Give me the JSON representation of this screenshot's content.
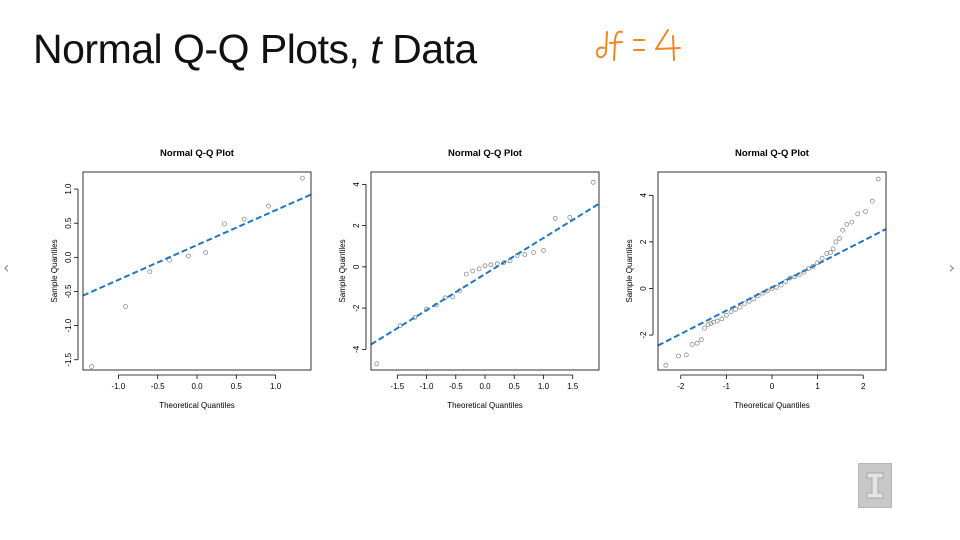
{
  "slide": {
    "title_main": "Normal Q-Q Plots, ",
    "title_italic": "t",
    "title_end": " Data",
    "annotation": "df = 4",
    "nav_prev_icon": "chevron-left-icon",
    "nav_next_icon": "chevron-right-icon",
    "logo_icon": "university-block-i-icon"
  },
  "chart_data": [
    {
      "type": "scatter",
      "title": "Normal Q-Q Plot",
      "xlabel": "Theoretical Quantiles",
      "ylabel": "Sample Quantiles",
      "xlim": [
        -1.45,
        1.45
      ],
      "ylim": [
        -1.65,
        1.25
      ],
      "xticks": [
        -1.0,
        -0.5,
        0.0,
        0.5,
        1.0
      ],
      "xtick_labels": [
        "-1.0",
        "-0.5",
        "0.0",
        "0.5",
        "1.0"
      ],
      "yticks": [
        -1.5,
        -1.0,
        -0.5,
        0.0,
        0.5,
        1.0
      ],
      "ytick_labels": [
        "-1.5",
        "-1.0",
        "-0.5",
        "0.0",
        "0.5",
        "1.0"
      ],
      "point_color": "#8c8c8c",
      "line_color": "#1f77c4",
      "points": [
        {
          "x": -1.34,
          "y": -1.6
        },
        {
          "x": -0.91,
          "y": -0.72
        },
        {
          "x": -0.6,
          "y": -0.21
        },
        {
          "x": -0.35,
          "y": -0.04
        },
        {
          "x": -0.11,
          "y": 0.02
        },
        {
          "x": 0.11,
          "y": 0.07
        },
        {
          "x": 0.35,
          "y": 0.49
        },
        {
          "x": 0.6,
          "y": 0.56
        },
        {
          "x": 0.91,
          "y": 0.75
        },
        {
          "x": 1.34,
          "y": 1.16
        }
      ],
      "ref_line": {
        "intercept": 0.18,
        "slope": 0.51
      }
    },
    {
      "type": "scatter",
      "title": "Normal Q-Q Plot",
      "xlabel": "Theoretical Quantiles",
      "ylabel": "Sample Quantiles",
      "xlim": [
        -1.95,
        1.95
      ],
      "ylim": [
        -5.0,
        4.6
      ],
      "xticks": [
        -1.5,
        -1.0,
        -0.5,
        0.0,
        0.5,
        1.0,
        1.5
      ],
      "xtick_labels": [
        "-1.5",
        "-1.0",
        "-0.5",
        "0.0",
        "0.5",
        "1.0",
        "1.5"
      ],
      "yticks": [
        -4,
        -2,
        0,
        2,
        4
      ],
      "ytick_labels": [
        "-4",
        "-2",
        "0",
        "2",
        "4"
      ],
      "point_color": "#8c8c8c",
      "line_color": "#1f77c4",
      "points": [
        {
          "x": -1.85,
          "y": -4.7
        },
        {
          "x": -1.45,
          "y": -2.85
        },
        {
          "x": -1.2,
          "y": -2.45
        },
        {
          "x": -1.0,
          "y": -2.05
        },
        {
          "x": -0.83,
          "y": -1.85
        },
        {
          "x": -0.68,
          "y": -1.5
        },
        {
          "x": -0.55,
          "y": -1.45
        },
        {
          "x": -0.43,
          "y": -1.15
        },
        {
          "x": -0.32,
          "y": -0.35
        },
        {
          "x": -0.21,
          "y": -0.2
        },
        {
          "x": -0.1,
          "y": -0.1
        },
        {
          "x": 0.0,
          "y": 0.05
        },
        {
          "x": 0.1,
          "y": 0.1
        },
        {
          "x": 0.21,
          "y": 0.15
        },
        {
          "x": 0.32,
          "y": 0.2
        },
        {
          "x": 0.43,
          "y": 0.3
        },
        {
          "x": 0.55,
          "y": 0.55
        },
        {
          "x": 0.68,
          "y": 0.6
        },
        {
          "x": 0.83,
          "y": 0.7
        },
        {
          "x": 1.0,
          "y": 0.8
        },
        {
          "x": 1.2,
          "y": 2.35
        },
        {
          "x": 1.45,
          "y": 2.4
        },
        {
          "x": 1.85,
          "y": 4.1
        }
      ],
      "ref_line": {
        "intercept": -0.35,
        "slope": 1.75
      }
    },
    {
      "type": "scatter",
      "title": "Normal Q-Q Plot",
      "xlabel": "Theoretical Quantiles",
      "ylabel": "Sample Quantiles",
      "xlim": [
        -2.5,
        2.5
      ],
      "ylim": [
        -3.5,
        5.0
      ],
      "xticks": [
        -2,
        -1,
        0,
        1,
        2
      ],
      "xtick_labels": [
        "-2",
        "-1",
        "0",
        "1",
        "2"
      ],
      "yticks": [
        -2,
        0,
        2,
        4
      ],
      "ytick_labels": [
        "-2",
        "0",
        "2",
        "4"
      ],
      "point_color": "#8c8c8c",
      "line_color": "#1f77c4",
      "points": [
        {
          "x": -2.33,
          "y": -3.3
        },
        {
          "x": -2.05,
          "y": -2.9
        },
        {
          "x": -1.88,
          "y": -2.85
        },
        {
          "x": -1.75,
          "y": -2.4
        },
        {
          "x": -1.64,
          "y": -2.35
        },
        {
          "x": -1.55,
          "y": -2.2
        },
        {
          "x": -1.48,
          "y": -1.7
        },
        {
          "x": -1.4,
          "y": -1.55
        },
        {
          "x": -1.34,
          "y": -1.5
        },
        {
          "x": -1.28,
          "y": -1.45
        },
        {
          "x": -1.2,
          "y": -1.4
        },
        {
          "x": -1.1,
          "y": -1.3
        },
        {
          "x": -1.0,
          "y": -1.15
        },
        {
          "x": -0.9,
          "y": -1.0
        },
        {
          "x": -0.8,
          "y": -0.9
        },
        {
          "x": -0.7,
          "y": -0.8
        },
        {
          "x": -0.6,
          "y": -0.65
        },
        {
          "x": -0.5,
          "y": -0.55
        },
        {
          "x": -0.4,
          "y": -0.45
        },
        {
          "x": -0.3,
          "y": -0.3
        },
        {
          "x": -0.2,
          "y": -0.2
        },
        {
          "x": -0.1,
          "y": -0.1
        },
        {
          "x": 0.0,
          "y": 0.0
        },
        {
          "x": 0.1,
          "y": 0.05
        },
        {
          "x": 0.2,
          "y": 0.15
        },
        {
          "x": 0.3,
          "y": 0.3
        },
        {
          "x": 0.4,
          "y": 0.45
        },
        {
          "x": 0.5,
          "y": 0.5
        },
        {
          "x": 0.6,
          "y": 0.6
        },
        {
          "x": 0.7,
          "y": 0.7
        },
        {
          "x": 0.8,
          "y": 0.85
        },
        {
          "x": 0.9,
          "y": 0.95
        },
        {
          "x": 1.0,
          "y": 1.1
        },
        {
          "x": 1.1,
          "y": 1.3
        },
        {
          "x": 1.2,
          "y": 1.5
        },
        {
          "x": 1.28,
          "y": 1.55
        },
        {
          "x": 1.34,
          "y": 1.7
        },
        {
          "x": 1.4,
          "y": 2.0
        },
        {
          "x": 1.48,
          "y": 2.15
        },
        {
          "x": 1.55,
          "y": 2.5
        },
        {
          "x": 1.64,
          "y": 2.75
        },
        {
          "x": 1.75,
          "y": 2.85
        },
        {
          "x": 1.88,
          "y": 3.2
        },
        {
          "x": 2.05,
          "y": 3.3
        },
        {
          "x": 2.2,
          "y": 3.75
        },
        {
          "x": 2.33,
          "y": 4.7
        }
      ],
      "ref_line": {
        "intercept": 0.05,
        "slope": 1.0
      }
    }
  ]
}
